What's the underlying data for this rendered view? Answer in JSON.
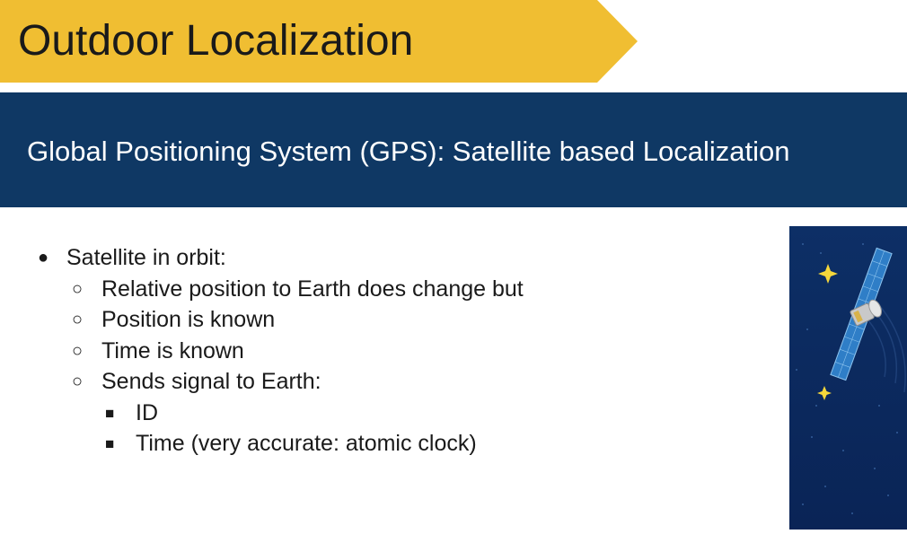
{
  "slide": {
    "title": "Outdoor Localization",
    "subtitle": "Global Positioning System (GPS): Satellite based Localization",
    "bullet_l1": "Satellite in orbit:",
    "bullets_l2": [
      "Relative position to Earth does change but",
      "Position is known",
      "Time is known",
      "Sends signal to Earth:"
    ],
    "bullets_l3": [
      "ID",
      "Time (very accurate: atomic clock)"
    ],
    "markers": {
      "l1": "●",
      "l2": "○",
      "l3": "■"
    }
  },
  "colors": {
    "title_banner": "#f0be32",
    "subtitle_bar": "#0f3864",
    "satellite_panel": "#0b2a5c",
    "star": "#f5d73b"
  },
  "icons": [
    "satellite-icon",
    "star-icon"
  ]
}
